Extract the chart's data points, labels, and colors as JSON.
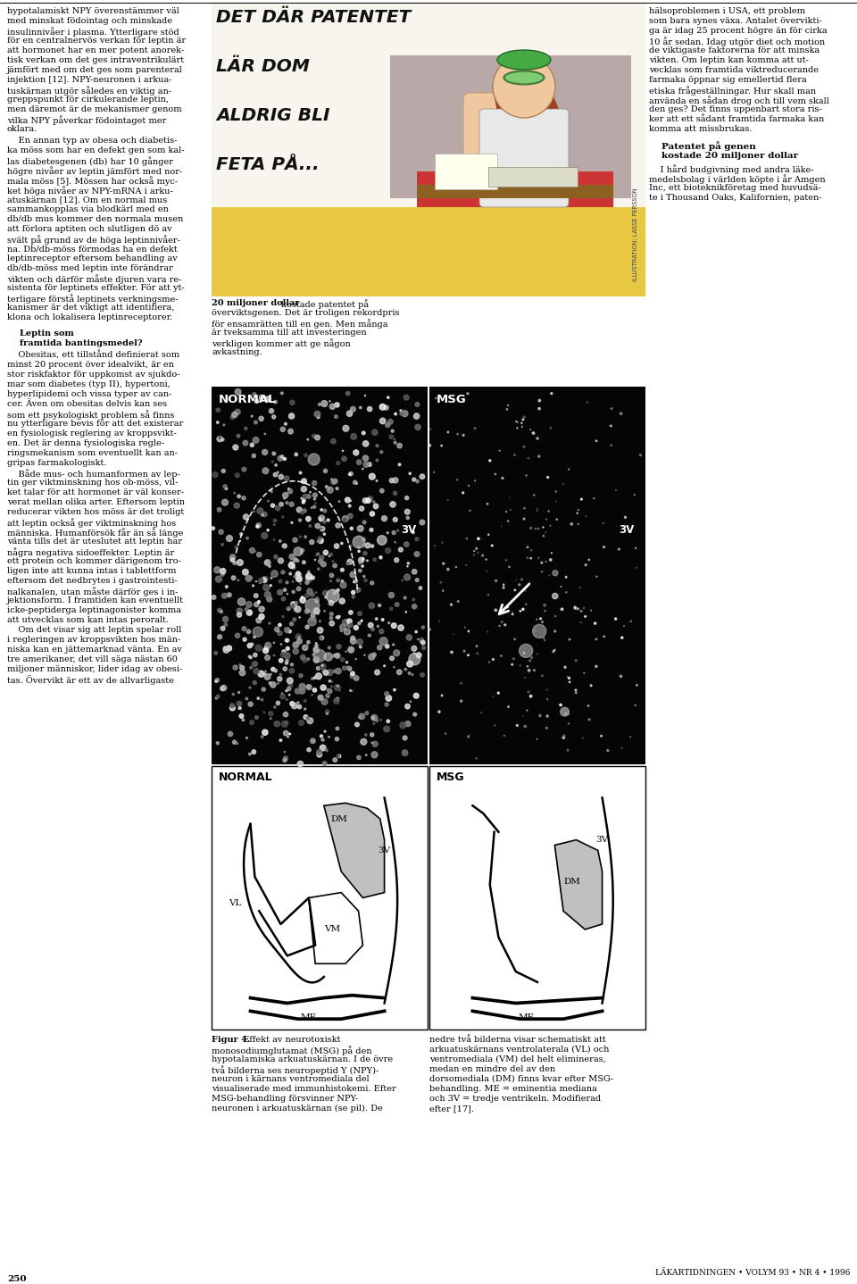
{
  "bg_color": "#ffffff",
  "page_width": 9.6,
  "page_height": 14.38,
  "page_number": "250",
  "footer_right": "LÄKARTIDNINGEN • VOLYM 93 • NR 4 • 1996",
  "col1_text_top": [
    "hypotalamiskt NPY överenstämmer väl",
    "med minskat födointag och minskade",
    "insulinnivåer i plasma. Ytterligare stöd",
    "för en centralnervös verkan för leptin är",
    "att hormonet har en mer potent anorek-",
    "tisk verkan om det ges intraventrikulärt",
    "jämfört med om det ges som parenteral",
    "injektion [12]. NPY-neuronen i arkua-",
    "tuskärnan utgör således en viktig an-",
    "greppspunkt för cirkulerande leptin,",
    "men däremot är de mekanismer genom",
    "vilka NPY påverkar födointaget mer",
    "oklara."
  ],
  "col1_text_para2": [
    "    En annan typ av obesa och diabetis-",
    "ka möss som har en defekt gen som kal-",
    "las diabetesgenen (db) har 10 gånger",
    "högre nivåer av leptin jämfört med nor-",
    "mala möss [5]. Mössen har också myc-",
    "ket höga nivåer av NPY-mRNA i arku-",
    "atuskärnan [12]. Om en normal mus",
    "sammankopplas via blodkärl med en",
    "db/db mus kommer den normala musen",
    "att förlora aptiten och slutligen dö av",
    "svält på grund av de höga leptinnivåer-",
    "na. Db/db-möss förmodas ha en defekt",
    "leptinreceptor eftersom behandling av",
    "db/db-möss med leptin inte förändrar",
    "vikten och därför måste djuren vara re-",
    "sistenta för leptinets effekter. För att yt-",
    "terligare förstå leptinets verkningsme-",
    "kanismer är det viktigt att identifiera,",
    "klona och lokalisera leptinreceptorer."
  ],
  "col1_heading1": "Leptin som",
  "col1_heading2": "framtida bantingsmedel?",
  "col1_text_para3": [
    "    Obesitas, ett tillstånd definierat som",
    "minst 20 procent över idealvikt, är en",
    "stor riskfaktor för uppkomst av sjukdo-",
    "mar som diabetes (typ II), hypertoni,",
    "hyperlipidemi och vissa typer av can-",
    "cer. Även om obesitas delvis kan ses",
    "som ett psykologiskt problem så finns",
    "nu ytterligare bevis för att det existerar",
    "en fysiologisk reglering av kroppsvikt-",
    "en. Det är denna fysiologiska regle-",
    "ringsmekanism som eventuellt kan an-",
    "gripas farmakologiskt.",
    "    Både mus- och humanformen av lep-",
    "tin ger viktminskning hos ob-möss, vil-",
    "ket talar för att hormonet är väl konser-",
    "verat mellan olika arter. Eftersom leptin",
    "reducerar vikten hos möss är det troligt",
    "att leptin också ger viktminskning hos",
    "människa. Humanförsök får än så länge",
    "vänta tills det är uteslutet att leptin har",
    "några negativa sidoeffekter. Leptin är",
    "ett protein och kommer därigenom tro-",
    "ligen inte att kunna intas i tablettform",
    "eftersom det nedbrytes i gastrointesti-",
    "nalkanalen, utan måste därför ges i in-",
    "jektionsform. I framtiden kan eventuellt",
    "icke-peptiderga leptinagonister komma",
    "att utvecklas som kan intas peroralt.",
    "    Om det visar sig att leptin spelar roll",
    "i regleringen av kroppsvikten hos män-",
    "niska kan en jättemarknad vänta. En av",
    "tre amerikaner, det vill säga nästan 60",
    "miljoner människor, lider idag av obesi-",
    "tas. Övervikt är ett av de allvarligaste"
  ],
  "col3_text_top": [
    "hälsoproblemen i USA, ett problem",
    "som bara synes växa. Antalet övervikti-",
    "ga är idag 25 procent högre än för cirka",
    "10 år sedan. Idag utgör diet och motion",
    "de viktigaste faktorerna för att minska",
    "vikten. Om leptin kan komma att ut-",
    "vecklas som framtida viktreducerande",
    "farmaka öppnar sig emellertid flera",
    "etiska frågeställningar. Hur skall man",
    "använda en sådan drog och till vem skall",
    "den ges? Det finns uppenbart stora ris-",
    "ker att ett sådant framtida farmaka kan",
    "komma att missbrukas."
  ],
  "col3_heading1": "Patentet på genen",
  "col3_heading2": "kostade 20 miljoner dollar",
  "col3_text_para2": [
    "    I hård budgivning med andra läke-",
    "medelsbolag i världen köpte i år Amgen",
    "Inc, ett bioteknikföretag med huvudsä-",
    "te i Thousand Oaks, Kalifornien, paten-"
  ],
  "caption_bold": "20 miljoner dollar",
  "caption_rest": [
    " kostade patentet på",
    "överviktsgenen. Det är troligen rekordpris",
    "för ensamrätten till en gen. Men många",
    "är tveksamma till att investeringen",
    "verkligen kommer att ge någon",
    "avkastning."
  ],
  "fig4_bold": "Figur 4.",
  "fig4_left_lines": [
    " Effekt av neurotoxiskt",
    "monosodiumglutamat (MSG) på den",
    "hypotalamiska arkuatuskärnan. I de övre",
    "två bilderna ses neuropeptid Y (NPY)-",
    "neuron i kärnans ventromediala del",
    "visualiserade med immunhistokemi. Efter",
    "MSG-behandling försvinner NPY-",
    "neuronen i arkuatuskärnan (se pil). De"
  ],
  "fig4_right_lines": [
    "nedre två bilderna visar schematiskt att",
    "arkuatuskärnans ventrolaterala (VL) och",
    "ventromediala (VM) del helt elimineras,",
    "medan en mindre del av den",
    "dorsomediala (DM) finns kvar efter MSG-",
    "behandling. ME = eminentia mediana",
    "och 3V = tredje ventrikeln. Modifierad",
    "efter [17]."
  ],
  "cartoon_lines": [
    "DET DÄR PATENTET",
    "LÄR DOM",
    "ALDRIG BLI",
    "FETA PÅ..."
  ],
  "cartoon_credit": "ILLUSTRATION: LASSE PERSSON",
  "micro_left_label": "NORMAL",
  "micro_right_label": "MSG",
  "micro_3v_label": "3V",
  "diag_left_label": "NORMAL",
  "diag_right_label": "MSG"
}
